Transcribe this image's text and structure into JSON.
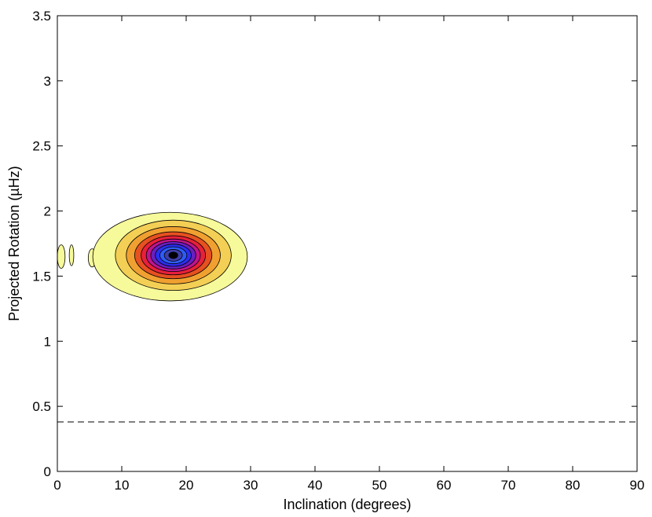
{
  "chart_data": {
    "type": "contour",
    "xlabel": "Inclination (degrees)",
    "ylabel": "Projected Rotation (µHz)",
    "xlim": [
      0,
      90
    ],
    "ylim": [
      0,
      3.5
    ],
    "xticks": [
      0,
      10,
      20,
      30,
      40,
      50,
      60,
      70,
      80,
      90
    ],
    "xtick_labels": [
      "0",
      "10",
      "20",
      "30",
      "40",
      "50",
      "60",
      "70",
      "80",
      "90"
    ],
    "yticks": [
      0,
      0.5,
      1,
      1.5,
      2,
      2.5,
      3,
      3.5
    ],
    "ytick_labels": [
      "0",
      "0.5",
      "1",
      "1.5",
      "2",
      "2.5",
      "3",
      "3.5"
    ],
    "grid": false,
    "reference_line": {
      "y": 0.38,
      "style": "dashed",
      "color": "#000000"
    },
    "peak": {
      "x": 18,
      "y": 1.66
    },
    "contour_levels": [
      {
        "level": 1,
        "color": "#f7fa9a",
        "cx": 17.5,
        "cy": 1.65,
        "rx": 12.0,
        "ry": 0.34
      },
      {
        "level": 2,
        "color": "#f3cf55",
        "cx": 18.0,
        "cy": 1.66,
        "rx": 9.0,
        "ry": 0.27
      },
      {
        "level": 3,
        "color": "#f0a030",
        "cx": 18.0,
        "cy": 1.66,
        "rx": 7.3,
        "ry": 0.22
      },
      {
        "level": 4,
        "color": "#e75020",
        "cx": 18.0,
        "cy": 1.66,
        "rx": 6.0,
        "ry": 0.18
      },
      {
        "level": 5,
        "color": "#e8203a",
        "cx": 18.0,
        "cy": 1.66,
        "rx": 5.0,
        "ry": 0.15
      },
      {
        "level": 6,
        "color": "#c0148c",
        "cx": 18.0,
        "cy": 1.66,
        "rx": 4.2,
        "ry": 0.125
      },
      {
        "level": 7,
        "color": "#6a1fc0",
        "cx": 18.0,
        "cy": 1.66,
        "rx": 3.5,
        "ry": 0.105
      },
      {
        "level": 8,
        "color": "#2b2ef0",
        "cx": 18.0,
        "cy": 1.66,
        "rx": 2.8,
        "ry": 0.085
      },
      {
        "level": 9,
        "color": "#2e5cf8",
        "cx": 18.0,
        "cy": 1.66,
        "rx": 2.1,
        "ry": 0.065
      },
      {
        "level": 10,
        "color": "#3f3faa",
        "cx": 18.0,
        "cy": 1.66,
        "rx": 1.4,
        "ry": 0.045
      },
      {
        "level": 11,
        "color": "#000000",
        "cx": 18.0,
        "cy": 1.66,
        "rx": 0.7,
        "ry": 0.025
      }
    ],
    "outer_islands": [
      {
        "color": "#f7fa9a",
        "cx": 0.6,
        "cy": 1.65,
        "rx": 0.6,
        "ry": 0.09
      },
      {
        "color": "#f7fa9a",
        "cx": 2.2,
        "cy": 1.66,
        "rx": 0.35,
        "ry": 0.08
      },
      {
        "color": "#f7fa9a",
        "cx": 5.4,
        "cy": 1.64,
        "rx": 0.6,
        "ry": 0.07
      }
    ]
  }
}
